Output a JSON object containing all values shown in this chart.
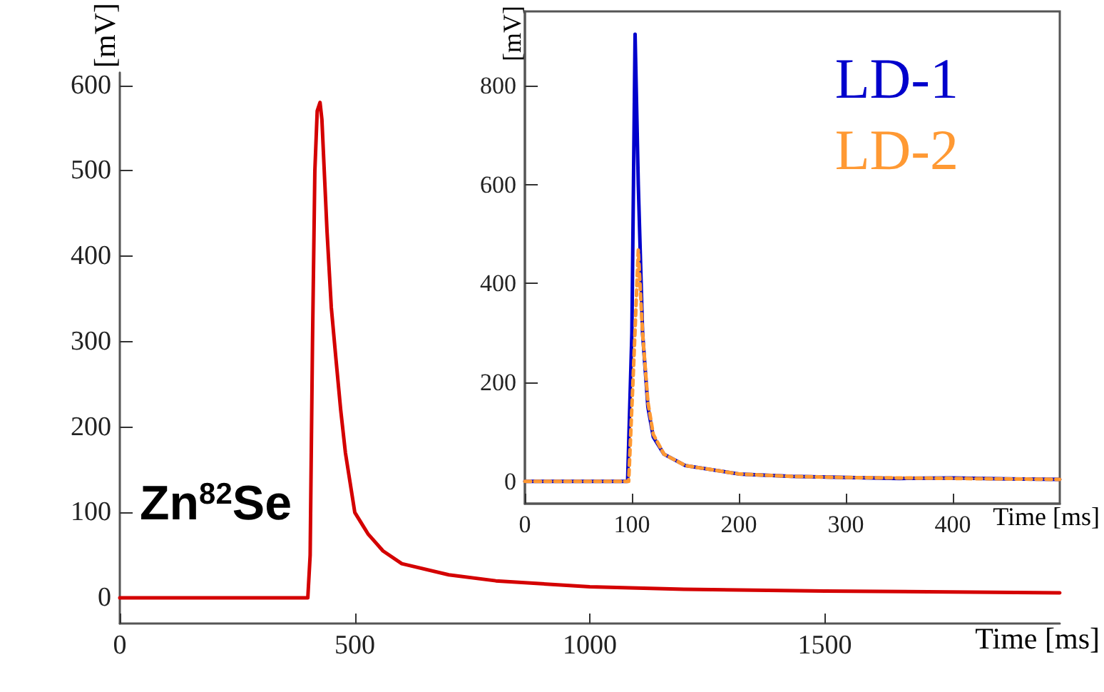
{
  "chart_data": [
    {
      "type": "line",
      "xlabel": "Time [ms]",
      "ylabel": "[mV]",
      "xlim": [
        0,
        2000
      ],
      "ylim": [
        -30,
        615
      ],
      "xticks": [
        0,
        500,
        1000,
        1500
      ],
      "yticks": [
        0,
        100,
        200,
        300,
        400,
        500,
        600
      ],
      "grid": false,
      "legend": false,
      "line_style": "solid",
      "marker": "none",
      "annotations": [
        "Zn$^{82}$Se"
      ],
      "series": [
        {
          "color": "#d40000",
          "x": [
            0,
            400,
            405,
            410,
            415,
            420,
            426,
            430,
            441,
            450,
            460,
            470,
            480,
            500,
            528,
            560,
            600,
            700,
            800,
            1000,
            1200,
            1500,
            2000
          ],
          "values": [
            0,
            0,
            50,
            300,
            500,
            570,
            580,
            560,
            428,
            340,
            279,
            220,
            170,
            100,
            75,
            55,
            40,
            27,
            20,
            13,
            10,
            8,
            6
          ]
        }
      ]
    },
    {
      "type": "line",
      "xlabel": "Time [ms]",
      "ylabel": "[mV]",
      "xlim": [
        0,
        500
      ],
      "ylim": [
        -45,
        950
      ],
      "xticks": [
        0,
        100,
        200,
        300,
        400
      ],
      "yticks": [
        0,
        200,
        400,
        600,
        800
      ],
      "grid": false,
      "legend": "top right",
      "marker": "none",
      "series": [
        {
          "name": "LD-1",
          "color": "#0000cc",
          "line_style": "solid",
          "x": [
            0,
            96,
            100,
            103,
            106,
            110,
            115,
            120,
            130,
            150,
            200,
            250,
            300,
            350,
            400,
            450,
            500
          ],
          "values": [
            0,
            0,
            300,
            904,
            600,
            300,
            150,
            90,
            55,
            32,
            15,
            10,
            8,
            6,
            7,
            5,
            4
          ]
        },
        {
          "name": "LD-2",
          "color": "#ff9933",
          "line_style": "dashed",
          "x": [
            0,
            97,
            101,
            106,
            110,
            115,
            120,
            130,
            150,
            200,
            250,
            300,
            400,
            500
          ],
          "values": [
            0,
            0,
            200,
            468,
            300,
            160,
            95,
            55,
            32,
            15,
            10,
            8,
            6,
            4
          ]
        }
      ]
    }
  ]
}
